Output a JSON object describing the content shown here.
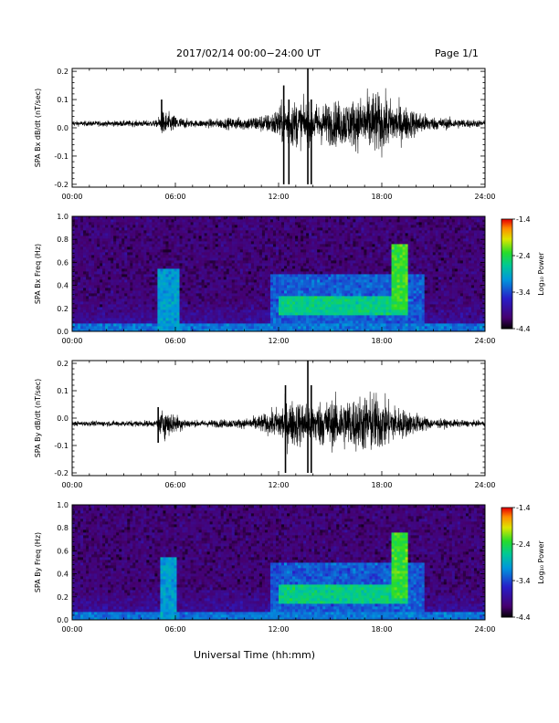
{
  "header": {
    "title": "2017/02/14  00:00−24:00 UT",
    "page": "Page 1/1"
  },
  "xlabel": "Universal Time (hh:mm)",
  "colorbar": {
    "ticks": [
      "-1.4",
      "-2.4",
      "-3.4",
      "-4.4"
    ],
    "label": "Log₁₀ Power",
    "range": [
      -4.4,
      -1.4
    ]
  },
  "chart_data": [
    {
      "type": "line",
      "ylabel": "SPA Bx dB/dt (nT/sec)",
      "x_ticks": [
        "00:00",
        "06:00",
        "12:00",
        "18:00",
        "24:00"
      ],
      "y_ticks": [
        "0.2",
        "0.1",
        "0.0",
        "-0.1",
        "-0.2"
      ],
      "xlim": [
        0,
        24
      ],
      "ylim": [
        -0.21,
        0.21
      ],
      "baseline": 0.015,
      "envelope": [
        {
          "x": 0,
          "amp": 0.015
        },
        {
          "x": 4.9,
          "amp": 0.02
        },
        {
          "x": 5.3,
          "amp": 0.08
        },
        {
          "x": 6.2,
          "amp": 0.04
        },
        {
          "x": 7.0,
          "amp": 0.02
        },
        {
          "x": 10.0,
          "amp": 0.04
        },
        {
          "x": 11.5,
          "amp": 0.06
        },
        {
          "x": 12.5,
          "amp": 0.15
        },
        {
          "x": 14.0,
          "amp": 0.12
        },
        {
          "x": 16.5,
          "amp": 0.15
        },
        {
          "x": 17.5,
          "amp": 0.2
        },
        {
          "x": 19.0,
          "amp": 0.12
        },
        {
          "x": 21.0,
          "amp": 0.04
        },
        {
          "x": 24.0,
          "amp": 0.02
        }
      ],
      "spikes": [
        {
          "x": 5.2,
          "y0": 0.015,
          "y1": 0.1
        },
        {
          "x": 12.3,
          "y0": -0.2,
          "y1": 0.15
        },
        {
          "x": 12.6,
          "y0": -0.2,
          "y1": 0.1
        },
        {
          "x": 13.7,
          "y0": -0.2,
          "y1": 0.21
        },
        {
          "x": 13.9,
          "y0": -0.2,
          "y1": 0.1
        }
      ]
    },
    {
      "type": "heatmap",
      "ylabel": "SPA Bx Freq (Hz)",
      "x_ticks": [
        "00:00",
        "06:00",
        "12:00",
        "18:00",
        "24:00"
      ],
      "y_ticks": [
        "1.0",
        "0.8",
        "0.6",
        "0.4",
        "0.2",
        "0.0"
      ],
      "xlim": [
        0,
        24
      ],
      "ylim": [
        0,
        1.0
      ],
      "features": [
        {
          "x0": 0,
          "x1": 24,
          "f0": 0,
          "f1": 0.06,
          "level": -3.2
        },
        {
          "x0": 5.0,
          "x1": 6.2,
          "f0": 0,
          "f1": 0.55,
          "level": -3.0
        },
        {
          "x0": 11.5,
          "x1": 20.5,
          "f0": 0,
          "f1": 0.5,
          "level": -3.3
        },
        {
          "x0": 12.0,
          "x1": 19.5,
          "f0": 0.15,
          "f1": 0.3,
          "level": -2.6
        },
        {
          "x0": 18.5,
          "x1": 19.5,
          "f0": 0.2,
          "f1": 0.75,
          "level": -2.3
        }
      ]
    },
    {
      "type": "line",
      "ylabel": "SPA By dB/dt (nT/sec)",
      "x_ticks": [
        "00:00",
        "06:00",
        "12:00",
        "18:00",
        "24:00"
      ],
      "y_ticks": [
        "0.2",
        "0.1",
        "0.0",
        "-0.1",
        "-0.2"
      ],
      "xlim": [
        0,
        24
      ],
      "ylim": [
        -0.21,
        0.21
      ],
      "baseline": -0.02,
      "envelope": [
        {
          "x": 0,
          "amp": 0.015
        },
        {
          "x": 4.9,
          "amp": 0.02
        },
        {
          "x": 5.3,
          "amp": 0.1
        },
        {
          "x": 6.2,
          "amp": 0.05
        },
        {
          "x": 7.0,
          "amp": 0.02
        },
        {
          "x": 10.0,
          "amp": 0.03
        },
        {
          "x": 11.5,
          "amp": 0.07
        },
        {
          "x": 12.5,
          "amp": 0.15
        },
        {
          "x": 14.0,
          "amp": 0.14
        },
        {
          "x": 16.5,
          "amp": 0.17
        },
        {
          "x": 17.5,
          "amp": 0.2
        },
        {
          "x": 19.0,
          "amp": 0.1
        },
        {
          "x": 21.0,
          "amp": 0.03
        },
        {
          "x": 24.0,
          "amp": 0.015
        }
      ],
      "spikes": [
        {
          "x": 5.0,
          "y0": -0.09,
          "y1": 0.04
        },
        {
          "x": 12.4,
          "y0": -0.2,
          "y1": 0.12
        },
        {
          "x": 13.7,
          "y0": -0.2,
          "y1": 0.21
        },
        {
          "x": 13.9,
          "y0": -0.2,
          "y1": 0.12
        }
      ]
    },
    {
      "type": "heatmap",
      "ylabel": "SPA By Freq (Hz)",
      "x_ticks": [
        "00:00",
        "06:00",
        "12:00",
        "18:00",
        "24:00"
      ],
      "y_ticks": [
        "1.0",
        "0.8",
        "0.6",
        "0.4",
        "0.2",
        "0.0"
      ],
      "xlim": [
        0,
        24
      ],
      "ylim": [
        0,
        1.0
      ],
      "features": [
        {
          "x0": 0,
          "x1": 24,
          "f0": 0,
          "f1": 0.06,
          "level": -3.2
        },
        {
          "x0": 5.2,
          "x1": 6.0,
          "f0": 0,
          "f1": 0.55,
          "level": -3.0
        },
        {
          "x0": 11.5,
          "x1": 20.5,
          "f0": 0,
          "f1": 0.5,
          "level": -3.3
        },
        {
          "x0": 12.0,
          "x1": 19.5,
          "f0": 0.15,
          "f1": 0.3,
          "level": -2.6
        },
        {
          "x0": 18.5,
          "x1": 19.5,
          "f0": 0.2,
          "f1": 0.75,
          "level": -2.3
        }
      ]
    }
  ]
}
